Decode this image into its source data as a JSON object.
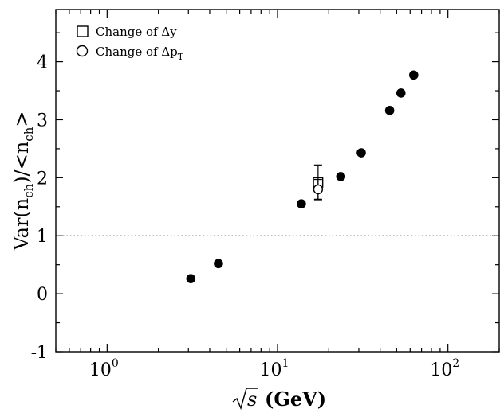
{
  "chart_data": {
    "type": "scatter",
    "xscale": "log",
    "xlim": [
      0.5,
      200
    ],
    "ylim": [
      -1,
      4.9
    ],
    "x_ticks": [
      {
        "base": "10",
        "exp": "0"
      },
      {
        "base": "10",
        "exp": "1"
      },
      {
        "base": "10",
        "exp": "2"
      }
    ],
    "y_ticks": [
      "-1",
      "0",
      "1",
      "2",
      "3",
      "4"
    ],
    "xlabel": {
      "root": "s",
      "unit": "(GeV)"
    },
    "ylabel": {
      "pre": "Var(n",
      "sub1": "ch",
      "mid": ")/<n",
      "sub2": "ch",
      "post": ">"
    },
    "reference_line": {
      "y": 1,
      "style": "dotted"
    },
    "series": [
      {
        "marker": "filled-circle",
        "x": [
          3.1,
          4.5,
          13.8,
          23.5,
          31,
          45.5,
          53,
          63
        ],
        "y": [
          0.26,
          0.52,
          1.55,
          2.02,
          2.43,
          3.16,
          3.46,
          3.77
        ]
      },
      {
        "name": "Change of Δy",
        "marker": "open-square",
        "x": [
          17.3
        ],
        "y": [
          1.92
        ],
        "yerr": [
          0.3
        ]
      },
      {
        "name": "Change of Δp",
        "name_sub": "T",
        "marker": "open-circle",
        "x": [
          17.3
        ],
        "y": [
          1.8
        ],
        "yerr": [
          0.17
        ]
      }
    ],
    "legend_position": "top-left"
  }
}
